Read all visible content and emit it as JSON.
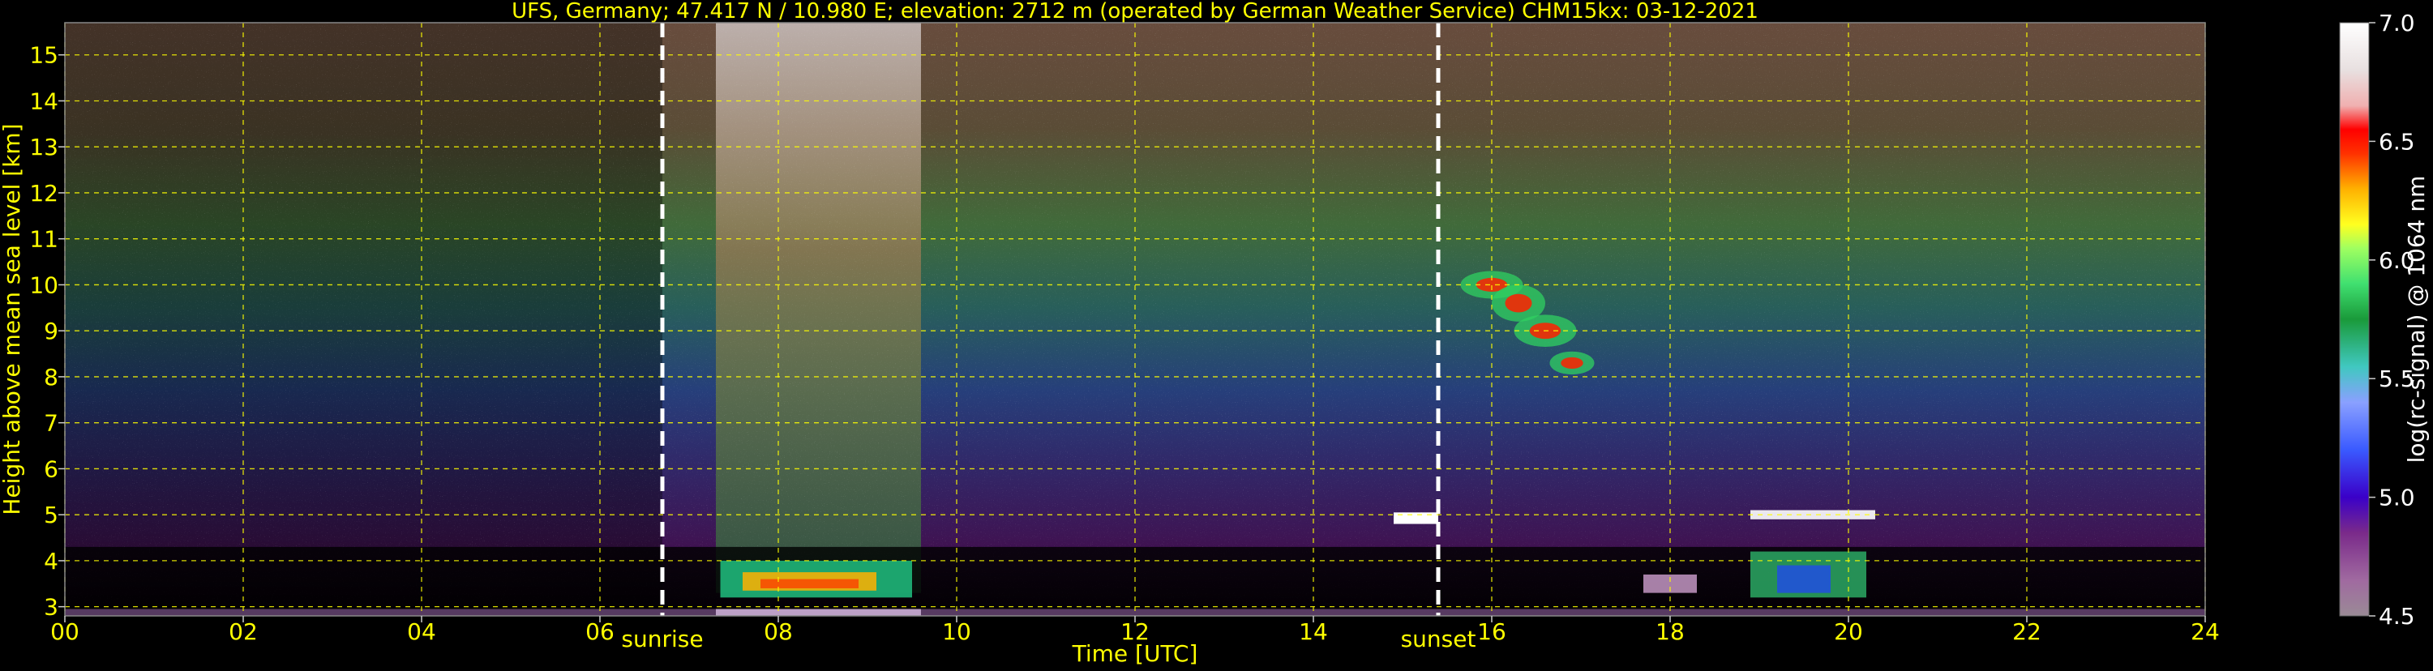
{
  "chart_data": {
    "type": "heatmap",
    "title": "UFS, Germany; 47.417 N / 10.980 E; elevation: 2712 m  (operated by German Weather Service)    CHM15kx: 03-12-2021",
    "xlabel": "Time [UTC]",
    "ylabel": "Height above mean sea level [km]",
    "xlim": [
      0,
      24
    ],
    "ylim": [
      2.8,
      15.7
    ],
    "x_ticks": [
      "00",
      "02",
      "04",
      "06",
      "08",
      "10",
      "12",
      "14",
      "16",
      "18",
      "20",
      "22",
      "24"
    ],
    "y_ticks": [
      "3",
      "4",
      "5",
      "6",
      "7",
      "8",
      "9",
      "10",
      "11",
      "12",
      "13",
      "14",
      "15"
    ],
    "grid": true,
    "colorbar": {
      "label": "log(rc-signal) @ 1064 nm",
      "range": [
        4.5,
        7.0
      ],
      "ticks": [
        "4.5",
        "5.0",
        "5.5",
        "6.0",
        "6.5",
        "7.0"
      ]
    },
    "markers": [
      {
        "label": "sunrise",
        "x": 6.7
      },
      {
        "label": "sunset",
        "x": 15.4
      }
    ],
    "colors": {
      "text": "#ffff00",
      "grid": "#ffff00",
      "marker_line": "#ffffff",
      "marker_text": "#ffff00",
      "colorbar_text": "#ffffff"
    }
  }
}
